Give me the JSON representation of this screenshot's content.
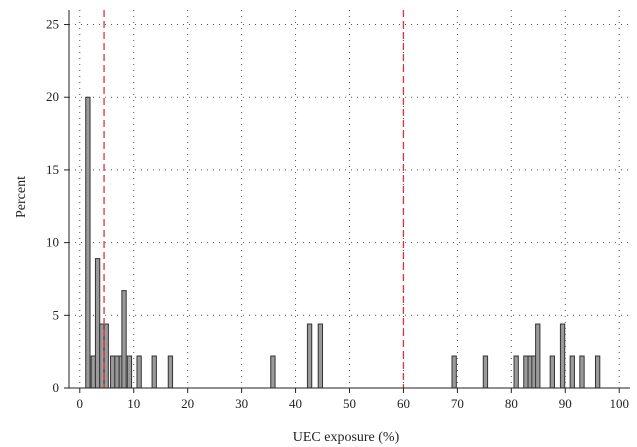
{
  "chart_data": {
    "type": "bar",
    "xlabel": "UEC exposure (%)",
    "ylabel": "Percent",
    "xlim": [
      -2,
      102
    ],
    "ylim": [
      0,
      26
    ],
    "x_ticks": [
      0,
      10,
      20,
      30,
      40,
      50,
      60,
      70,
      80,
      90,
      100
    ],
    "y_ticks": [
      0,
      5,
      10,
      15,
      20,
      25
    ],
    "grid": true,
    "bin_width": 0.8,
    "bars": [
      {
        "x": 1.5,
        "value": 20.0
      },
      {
        "x": 2.5,
        "value": 2.2
      },
      {
        "x": 3.3,
        "value": 8.9
      },
      {
        "x": 4.1,
        "value": 4.4
      },
      {
        "x": 4.9,
        "value": 4.4
      },
      {
        "x": 6.1,
        "value": 2.2
      },
      {
        "x": 6.9,
        "value": 2.2
      },
      {
        "x": 7.7,
        "value": 2.2
      },
      {
        "x": 8.2,
        "value": 6.7
      },
      {
        "x": 9.2,
        "value": 2.2
      },
      {
        "x": 11.0,
        "value": 2.2
      },
      {
        "x": 13.8,
        "value": 2.2
      },
      {
        "x": 16.8,
        "value": 2.2
      },
      {
        "x": 35.8,
        "value": 2.2
      },
      {
        "x": 42.6,
        "value": 4.4
      },
      {
        "x": 44.6,
        "value": 4.4
      },
      {
        "x": 69.4,
        "value": 2.2
      },
      {
        "x": 75.2,
        "value": 2.2
      },
      {
        "x": 80.9,
        "value": 2.2
      },
      {
        "x": 82.7,
        "value": 2.2
      },
      {
        "x": 83.5,
        "value": 2.2
      },
      {
        "x": 84.2,
        "value": 2.2
      },
      {
        "x": 84.9,
        "value": 4.4
      },
      {
        "x": 87.6,
        "value": 2.2
      },
      {
        "x": 89.5,
        "value": 4.4
      },
      {
        "x": 91.3,
        "value": 2.2
      },
      {
        "x": 93.1,
        "value": 2.2
      },
      {
        "x": 96.0,
        "value": 2.2
      }
    ],
    "reference_lines": [
      {
        "x": 4.5,
        "color": "#e0303a"
      },
      {
        "x": 60,
        "color": "#e0303a"
      }
    ],
    "colors": {
      "bar_fill": "#9a9a9a",
      "bar_stroke": "#333333",
      "reference": "#e0303a"
    }
  }
}
